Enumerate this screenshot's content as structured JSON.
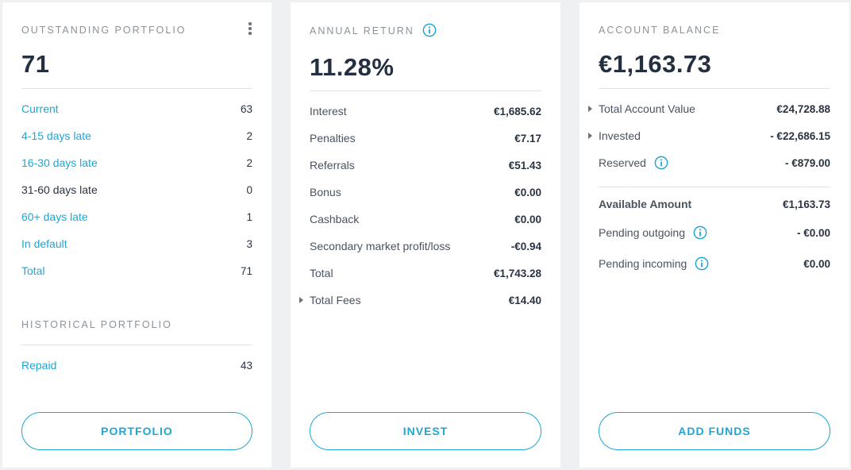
{
  "portfolio": {
    "title": "OUTSTANDING PORTFOLIO",
    "total": "71",
    "rows": [
      {
        "label": "Current",
        "value": "63"
      },
      {
        "label": "4-15 days late",
        "value": "2"
      },
      {
        "label": "16-30 days late",
        "value": "2"
      },
      {
        "label": "31-60 days late",
        "value": "0"
      },
      {
        "label": "60+ days late",
        "value": "1"
      },
      {
        "label": "In default",
        "value": "3"
      },
      {
        "label": "Total",
        "value": "71"
      }
    ],
    "historical_title": "HISTORICAL PORTFOLIO",
    "historical_rows": [
      {
        "label": "Repaid",
        "value": "43"
      }
    ],
    "button_label": "PORTFOLIO"
  },
  "annual_return": {
    "title": "ANNUAL RETURN",
    "value": "11.28%",
    "rows": [
      {
        "label": "Interest",
        "value": "€1,685.62"
      },
      {
        "label": "Penalties",
        "value": "€7.17"
      },
      {
        "label": "Referrals",
        "value": "€51.43"
      },
      {
        "label": "Bonus",
        "value": "€0.00"
      },
      {
        "label": "Cashback",
        "value": "€0.00"
      },
      {
        "label": "Secondary market profit/loss",
        "value": "-€0.94"
      },
      {
        "label": "Total",
        "value": "€1,743.28"
      },
      {
        "label": "Total Fees",
        "value": "€14.40"
      }
    ],
    "button_label": "INVEST"
  },
  "account_balance": {
    "title": "ACCOUNT BALANCE",
    "value": "€1,163.73",
    "rows": [
      {
        "label": "Total Account Value",
        "value": "€24,728.88"
      },
      {
        "label": "Invested",
        "value": "- €22,686.15"
      },
      {
        "label": "Reserved",
        "value": "- €879.00"
      }
    ],
    "rows2": [
      {
        "label": "Available Amount",
        "value": "€1,163.73"
      },
      {
        "label": "Pending outgoing",
        "value": "- €0.00"
      },
      {
        "label": "Pending incoming",
        "value": "€0.00"
      }
    ],
    "button_label": "ADD FUNDS"
  },
  "colors": {
    "accent": "#1ea6d4",
    "text": "#2a3442",
    "muted": "#8b9299"
  }
}
